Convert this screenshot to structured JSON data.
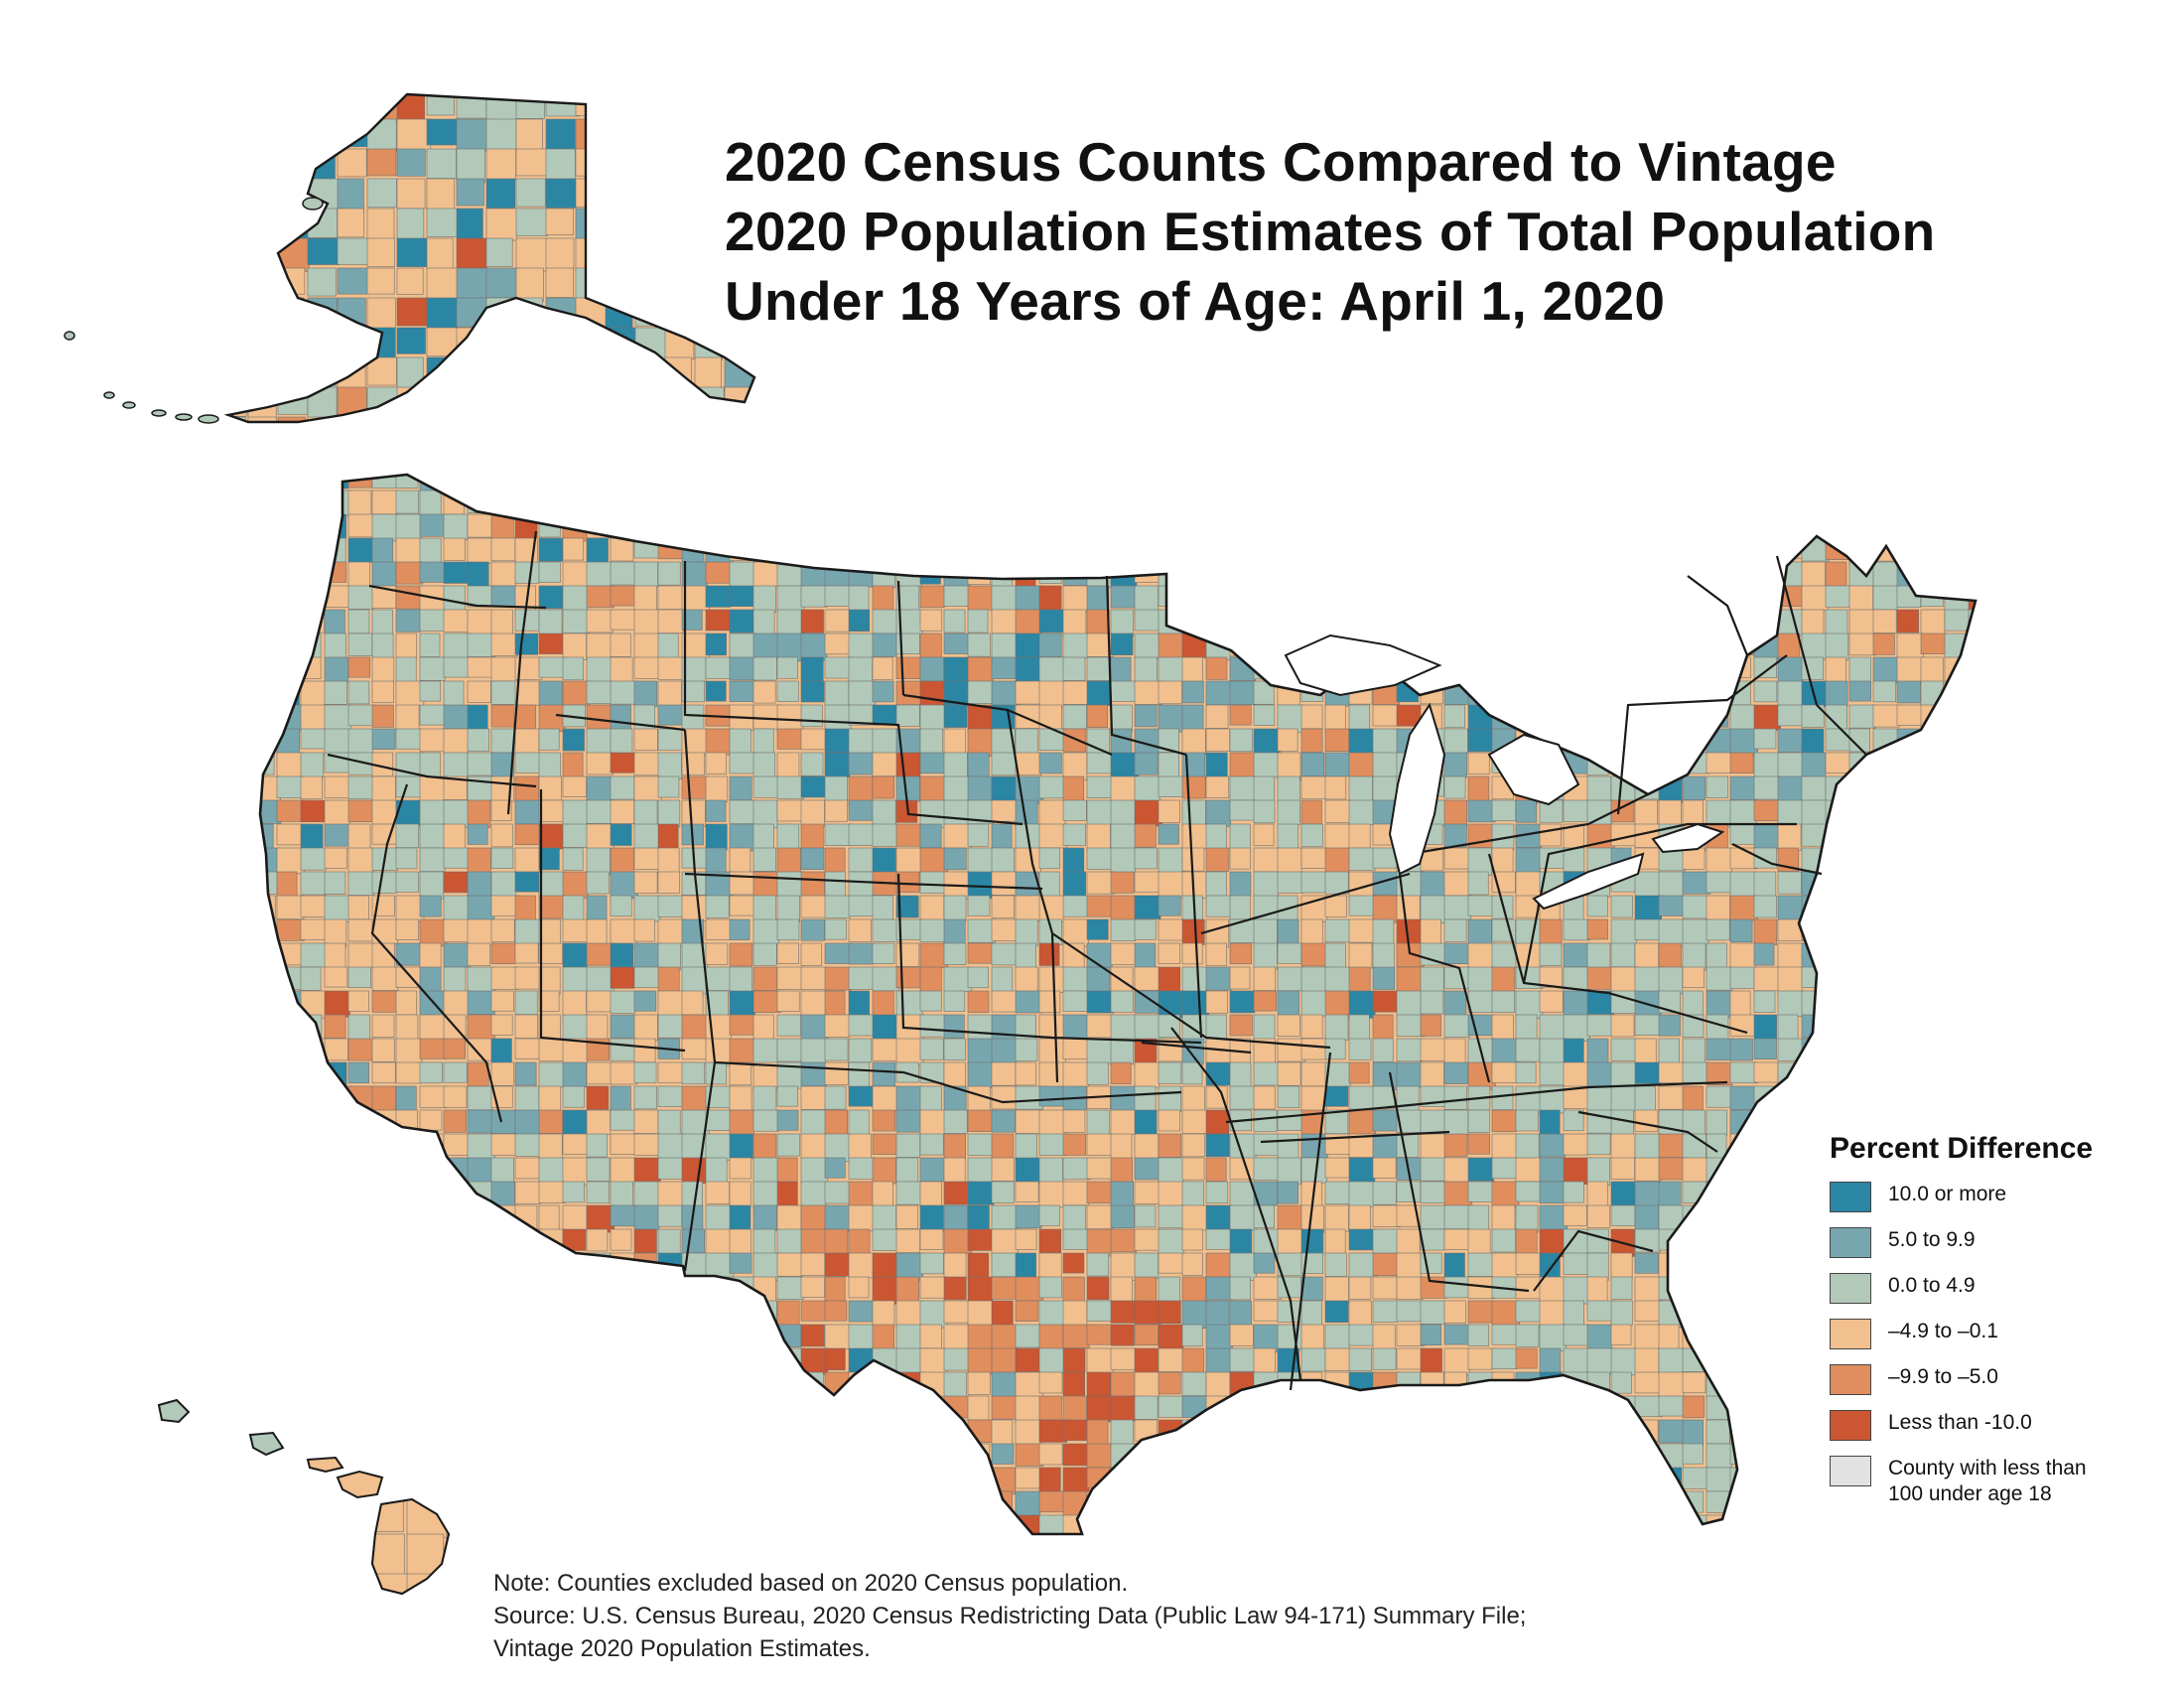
{
  "title": {
    "line1": "2020 Census Counts Compared to Vintage",
    "line2": "2020 Population Estimates of Total Population",
    "line3": "Under 18 Years of Age: April 1, 2020"
  },
  "legend": {
    "title": "Percent Difference",
    "items": [
      {
        "label": "10.0 or more",
        "color": "#2b86a4"
      },
      {
        "label": "5.0 to 9.9",
        "color": "#78a6ae"
      },
      {
        "label": "0.0 to 4.9",
        "color": "#b2c9b9"
      },
      {
        "label": "–4.9 to –0.1",
        "color": "#f1c08e"
      },
      {
        "label": "–9.9 to –5.0",
        "color": "#e08e5e"
      },
      {
        "label": "Less than -10.0",
        "color": "#cb5632"
      },
      {
        "label": "County with less than\n100 under age 18",
        "color": "#e2e2e2"
      }
    ]
  },
  "notes": {
    "note": "Note: Counties excluded based on 2020 Census population.",
    "source_line1": "Source: U.S. Census Bureau, 2020 Census Redistricting Data (Public Law 94-171) Summary File;",
    "source_line2": "Vintage 2020 Population Estimates."
  },
  "map_layers": {
    "alaska": "Alaska inset",
    "hawaii": "Hawaii inset",
    "contiguous_us": "Contiguous United States"
  }
}
